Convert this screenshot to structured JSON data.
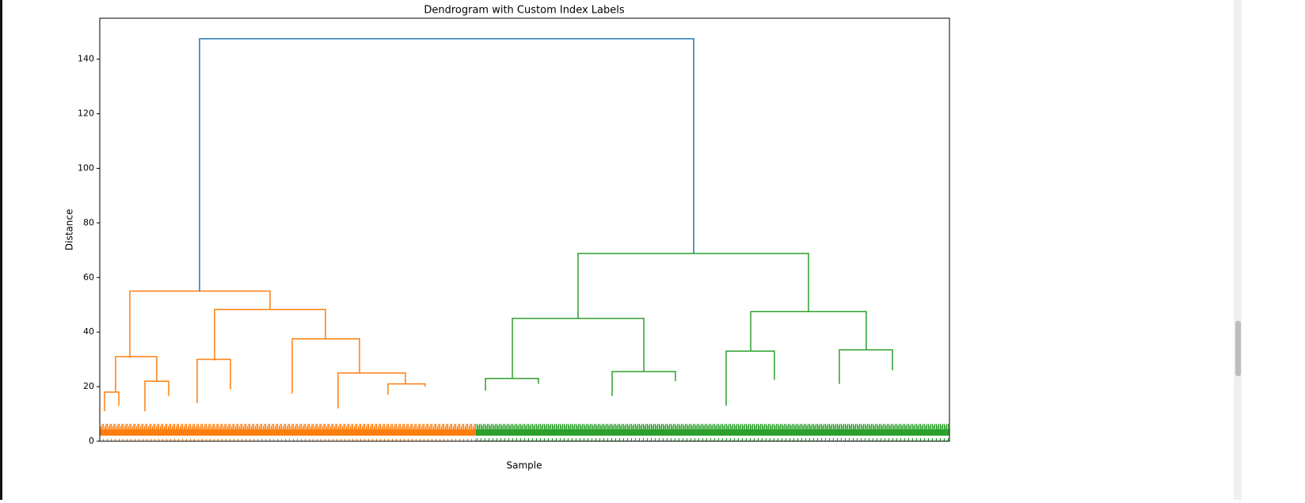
{
  "chart_data": {
    "type": "dendrogram",
    "title": "Dendrogram with Custom Index Labels",
    "x_label": "Sample",
    "y_label": "Distance",
    "xlim": [
      0,
      1000
    ],
    "ylim": [
      0,
      155
    ],
    "yticks": [
      0,
      20,
      40,
      60,
      80,
      100,
      120,
      140
    ],
    "series": [
      {
        "color": "#ff7f0e",
        "links": [
          [
            35.4,
            200.4,
            30.5,
            55,
            48.3
          ],
          [
            18.6,
            67.1,
            18,
            31,
            22
          ],
          [
            135.1,
            265.6,
            29.6,
            48.3,
            37.5
          ],
          [
            114.6,
            153.8,
            14,
            30,
            19
          ],
          [
            226.5,
            305.7,
            17.5,
            37.5,
            25
          ],
          [
            280.5,
            359.7,
            12,
            25,
            21
          ],
          [
            5.6,
            22.4,
            11,
            18,
            13
          ],
          [
            53.1,
            81.1,
            11,
            22,
            16.5
          ],
          [
            339.2,
            383,
            17,
            21,
            20
          ]
        ]
      },
      {
        "color": "#2ca02c",
        "links": [
          [
            562.9,
            834.1,
            45,
            68.8,
            47.5
          ],
          [
            485.6,
            640.3,
            23,
            45,
            25.5
          ],
          [
            766.1,
            902.1,
            33,
            47.5,
            33.5
          ],
          [
            737.2,
            794,
            13,
            33,
            22.5
          ],
          [
            870.4,
            932.9,
            21,
            33.5,
            26
          ],
          [
            603,
            677.5,
            16.5,
            25.5,
            22
          ],
          [
            453.9,
            516.3,
            18.5,
            23,
            21
          ]
        ]
      },
      {
        "color": "#1f77b4",
        "links": [
          [
            117.4,
            699,
            55,
            147.5,
            68.8
          ]
        ]
      }
    ]
  }
}
